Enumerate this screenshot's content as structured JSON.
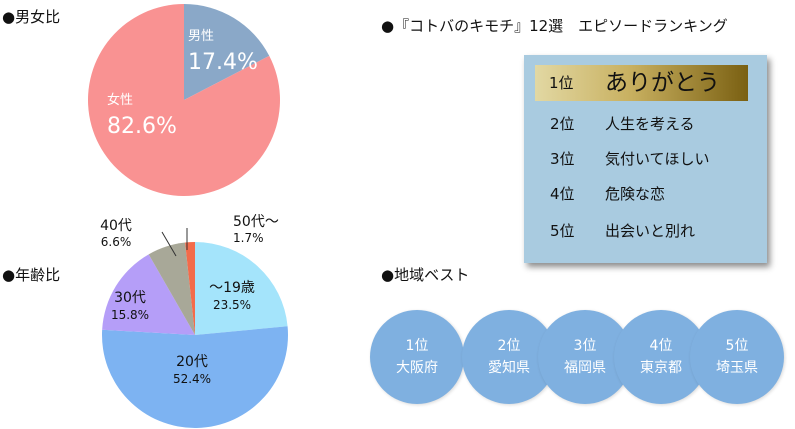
{
  "gender_section": {
    "heading": "●男女比"
  },
  "age_section": {
    "heading": "●年齢比"
  },
  "ranking_section": {
    "heading": "●『コトバのキモチ』12選　エピソードランキング",
    "items": [
      {
        "pos": "1位",
        "name": "ありがとう"
      },
      {
        "pos": "2位",
        "name": "人生を考える"
      },
      {
        "pos": "3位",
        "name": "気付いてほしい"
      },
      {
        "pos": "4位",
        "name": "危険な恋"
      },
      {
        "pos": "5位",
        "name": "出会いと別れ"
      }
    ]
  },
  "region_section": {
    "heading": "●地域ベスト",
    "items": [
      {
        "pos": "1位",
        "name": "大阪府"
      },
      {
        "pos": "2位",
        "name": "愛知県"
      },
      {
        "pos": "3位",
        "name": "福岡県"
      },
      {
        "pos": "4位",
        "name": "東京都"
      },
      {
        "pos": "5位",
        "name": "埼玉県"
      }
    ]
  },
  "chart_data": [
    {
      "type": "pie",
      "title": "男女比",
      "categories": [
        "男性",
        "女性"
      ],
      "values": [
        17.4,
        82.6
      ],
      "value_labels": [
        "17.4%",
        "82.6%"
      ],
      "colors": [
        "#8aa8c8",
        "#f99292"
      ]
    },
    {
      "type": "pie",
      "title": "年齢比",
      "categories": [
        "～19歳",
        "20代",
        "30代",
        "40代",
        "50代～"
      ],
      "values": [
        23.5,
        52.4,
        15.8,
        6.6,
        1.7
      ],
      "value_labels": [
        "23.5%",
        "52.4%",
        "15.8%",
        "6.6%",
        "1.7%"
      ],
      "colors": [
        "#a4e4fb",
        "#7db3f2",
        "#b59ef8",
        "#a8a898",
        "#f36b4b"
      ]
    }
  ]
}
